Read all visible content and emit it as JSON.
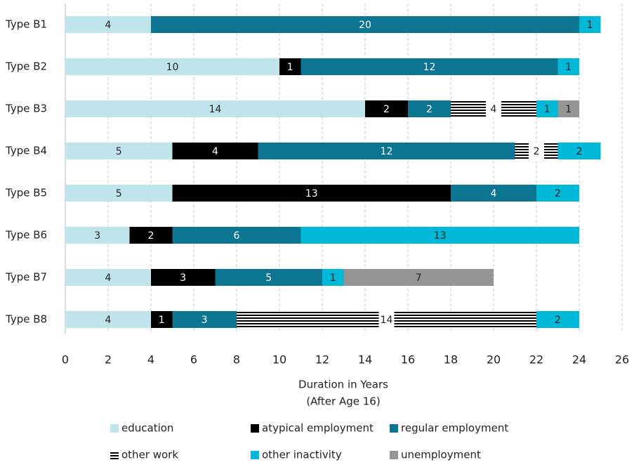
{
  "chart_data": {
    "type": "stacked-barh",
    "categories": [
      "Type B1",
      "Type B2",
      "Type B3",
      "Type B4",
      "Type B5",
      "Type B6",
      "Type B7",
      "Type B8"
    ],
    "series": [
      {
        "name": "education",
        "color": "#bfe4ec",
        "values": [
          4,
          10,
          14,
          5,
          5,
          3,
          4,
          4
        ]
      },
      {
        "name": "atypical employment",
        "color": "#000000",
        "values": [
          null,
          1,
          2,
          4,
          13,
          2,
          3,
          1
        ]
      },
      {
        "name": "regular employment",
        "color": "#0b7592",
        "values": [
          20,
          12,
          2,
          12,
          4,
          6,
          5,
          3
        ]
      },
      {
        "name": "other work",
        "color": "#000000",
        "pattern": "horizontal-stripes",
        "values": [
          null,
          null,
          4,
          2,
          null,
          null,
          null,
          14
        ]
      },
      {
        "name": "other inactivity",
        "color": "#00b8d8",
        "values": [
          1,
          1,
          1,
          2,
          2,
          13,
          1,
          2
        ]
      },
      {
        "name": "unemployment",
        "color": "#959595",
        "values": [
          null,
          null,
          1,
          null,
          null,
          null,
          7,
          null
        ]
      }
    ],
    "xlim": [
      0,
      26
    ],
    "xticks": [
      0,
      2,
      4,
      6,
      8,
      10,
      12,
      14,
      16,
      18,
      20,
      22,
      24,
      26
    ],
    "xlabel": [
      "Duration in Years",
      "(After Age 16)"
    ],
    "grid": true,
    "legend": "bottom"
  }
}
